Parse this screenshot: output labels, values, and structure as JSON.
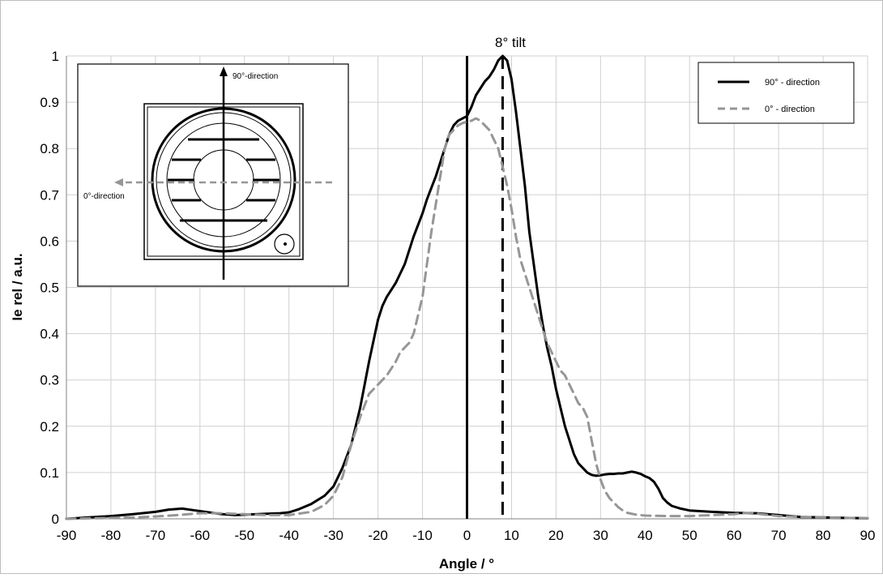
{
  "chart_data": {
    "type": "line",
    "xlabel": "Angle / °",
    "ylabel": "Ie rel / a.u.",
    "xlim": [
      -90,
      90
    ],
    "ylim": [
      0,
      1
    ],
    "x_ticks": [
      "-90",
      "-80",
      "-70",
      "-60",
      "-50",
      "-40",
      "-30",
      "-20",
      "-10",
      "0",
      "10",
      "20",
      "30",
      "40",
      "50",
      "60",
      "70",
      "80",
      "90"
    ],
    "y_ticks": [
      "0",
      "0.1",
      "0.2",
      "0.3",
      "0.4",
      "0.5",
      "0.6",
      "0.7",
      "0.8",
      "0.9",
      "1"
    ],
    "grid": true,
    "legend_position": "top-right",
    "annotation": "8° tilt",
    "reference_lines": [
      {
        "x": 0,
        "style": "solid"
      },
      {
        "x": 8,
        "style": "dashed"
      }
    ],
    "series": [
      {
        "name": "90° - direction",
        "color": "#000000",
        "style": "solid",
        "x": [
          -90,
          -85,
          -80,
          -75,
          -70,
          -67,
          -64,
          -61,
          -58,
          -55,
          -52,
          -50,
          -47,
          -45,
          -42,
          -40,
          -38,
          -35,
          -32,
          -30,
          -28,
          -26,
          -24,
          -22,
          -20,
          -19,
          -18,
          -17,
          -16,
          -15,
          -14,
          -13,
          -12,
          -11,
          -10,
          -9,
          -8,
          -7,
          -6,
          -5,
          -4,
          -3,
          -2,
          -1,
          0,
          1,
          2,
          3,
          4,
          5,
          6,
          7,
          8,
          9,
          10,
          11,
          12,
          13,
          14,
          15,
          16,
          17,
          18,
          19,
          20,
          21,
          22,
          23,
          24,
          25,
          26,
          27,
          28,
          29,
          30,
          31,
          32,
          33,
          34,
          35,
          36,
          37,
          38,
          39,
          40,
          41,
          42,
          43,
          44,
          45,
          46,
          48,
          50,
          55,
          60,
          65,
          70,
          75,
          80,
          85,
          90
        ],
        "values": [
          0.0,
          0.003,
          0.006,
          0.01,
          0.015,
          0.02,
          0.022,
          0.018,
          0.014,
          0.01,
          0.008,
          0.009,
          0.01,
          0.011,
          0.012,
          0.014,
          0.02,
          0.032,
          0.05,
          0.07,
          0.11,
          0.16,
          0.24,
          0.34,
          0.43,
          0.46,
          0.48,
          0.495,
          0.51,
          0.53,
          0.55,
          0.58,
          0.61,
          0.635,
          0.66,
          0.69,
          0.715,
          0.74,
          0.77,
          0.8,
          0.83,
          0.85,
          0.86,
          0.865,
          0.87,
          0.89,
          0.915,
          0.93,
          0.945,
          0.955,
          0.97,
          0.99,
          1.0,
          0.99,
          0.95,
          0.88,
          0.8,
          0.72,
          0.62,
          0.55,
          0.48,
          0.42,
          0.37,
          0.33,
          0.28,
          0.24,
          0.2,
          0.17,
          0.14,
          0.12,
          0.11,
          0.1,
          0.095,
          0.093,
          0.094,
          0.096,
          0.097,
          0.097,
          0.098,
          0.098,
          0.1,
          0.102,
          0.1,
          0.097,
          0.092,
          0.088,
          0.08,
          0.065,
          0.045,
          0.035,
          0.028,
          0.022,
          0.018,
          0.015,
          0.013,
          0.012,
          0.008,
          0.004,
          0.003,
          0.002,
          0.001
        ]
      },
      {
        "name": "0° - direction",
        "color": "#969696",
        "style": "dashed",
        "x": [
          -90,
          -85,
          -80,
          -75,
          -70,
          -65,
          -60,
          -55,
          -50,
          -45,
          -40,
          -35,
          -32,
          -30,
          -28,
          -26,
          -24,
          -22,
          -20,
          -18,
          -16,
          -15,
          -14,
          -13,
          -12,
          -11,
          -10,
          -9,
          -8,
          -7,
          -6,
          -5,
          -4,
          -3,
          -2,
          -1,
          0,
          1,
          2,
          3,
          4,
          5,
          6,
          7,
          8,
          9,
          10,
          11,
          12,
          13,
          14,
          15,
          16,
          17,
          18,
          19,
          20,
          21,
          22,
          23,
          24,
          25,
          26,
          27,
          28,
          29,
          30,
          31,
          32,
          33,
          34,
          35,
          36,
          38,
          40,
          45,
          50,
          55,
          60,
          62,
          64,
          66,
          70,
          75,
          80,
          85,
          90
        ],
        "values": [
          0.0,
          0.001,
          0.002,
          0.003,
          0.005,
          0.008,
          0.012,
          0.012,
          0.01,
          0.008,
          0.008,
          0.015,
          0.03,
          0.05,
          0.09,
          0.16,
          0.22,
          0.27,
          0.29,
          0.31,
          0.34,
          0.36,
          0.37,
          0.38,
          0.4,
          0.44,
          0.48,
          0.55,
          0.62,
          0.68,
          0.74,
          0.8,
          0.83,
          0.84,
          0.85,
          0.855,
          0.858,
          0.86,
          0.865,
          0.86,
          0.85,
          0.84,
          0.82,
          0.8,
          0.76,
          0.72,
          0.67,
          0.61,
          0.56,
          0.53,
          0.5,
          0.47,
          0.44,
          0.41,
          0.38,
          0.36,
          0.34,
          0.32,
          0.31,
          0.29,
          0.27,
          0.25,
          0.24,
          0.22,
          0.17,
          0.12,
          0.085,
          0.06,
          0.045,
          0.035,
          0.025,
          0.018,
          0.013,
          0.009,
          0.007,
          0.006,
          0.006,
          0.008,
          0.01,
          0.012,
          0.013,
          0.01,
          0.006,
          0.004,
          0.003,
          0.002,
          0.001
        ]
      }
    ]
  },
  "inset": {
    "label_90": "90°-direction",
    "label_0": "0°-direction"
  }
}
